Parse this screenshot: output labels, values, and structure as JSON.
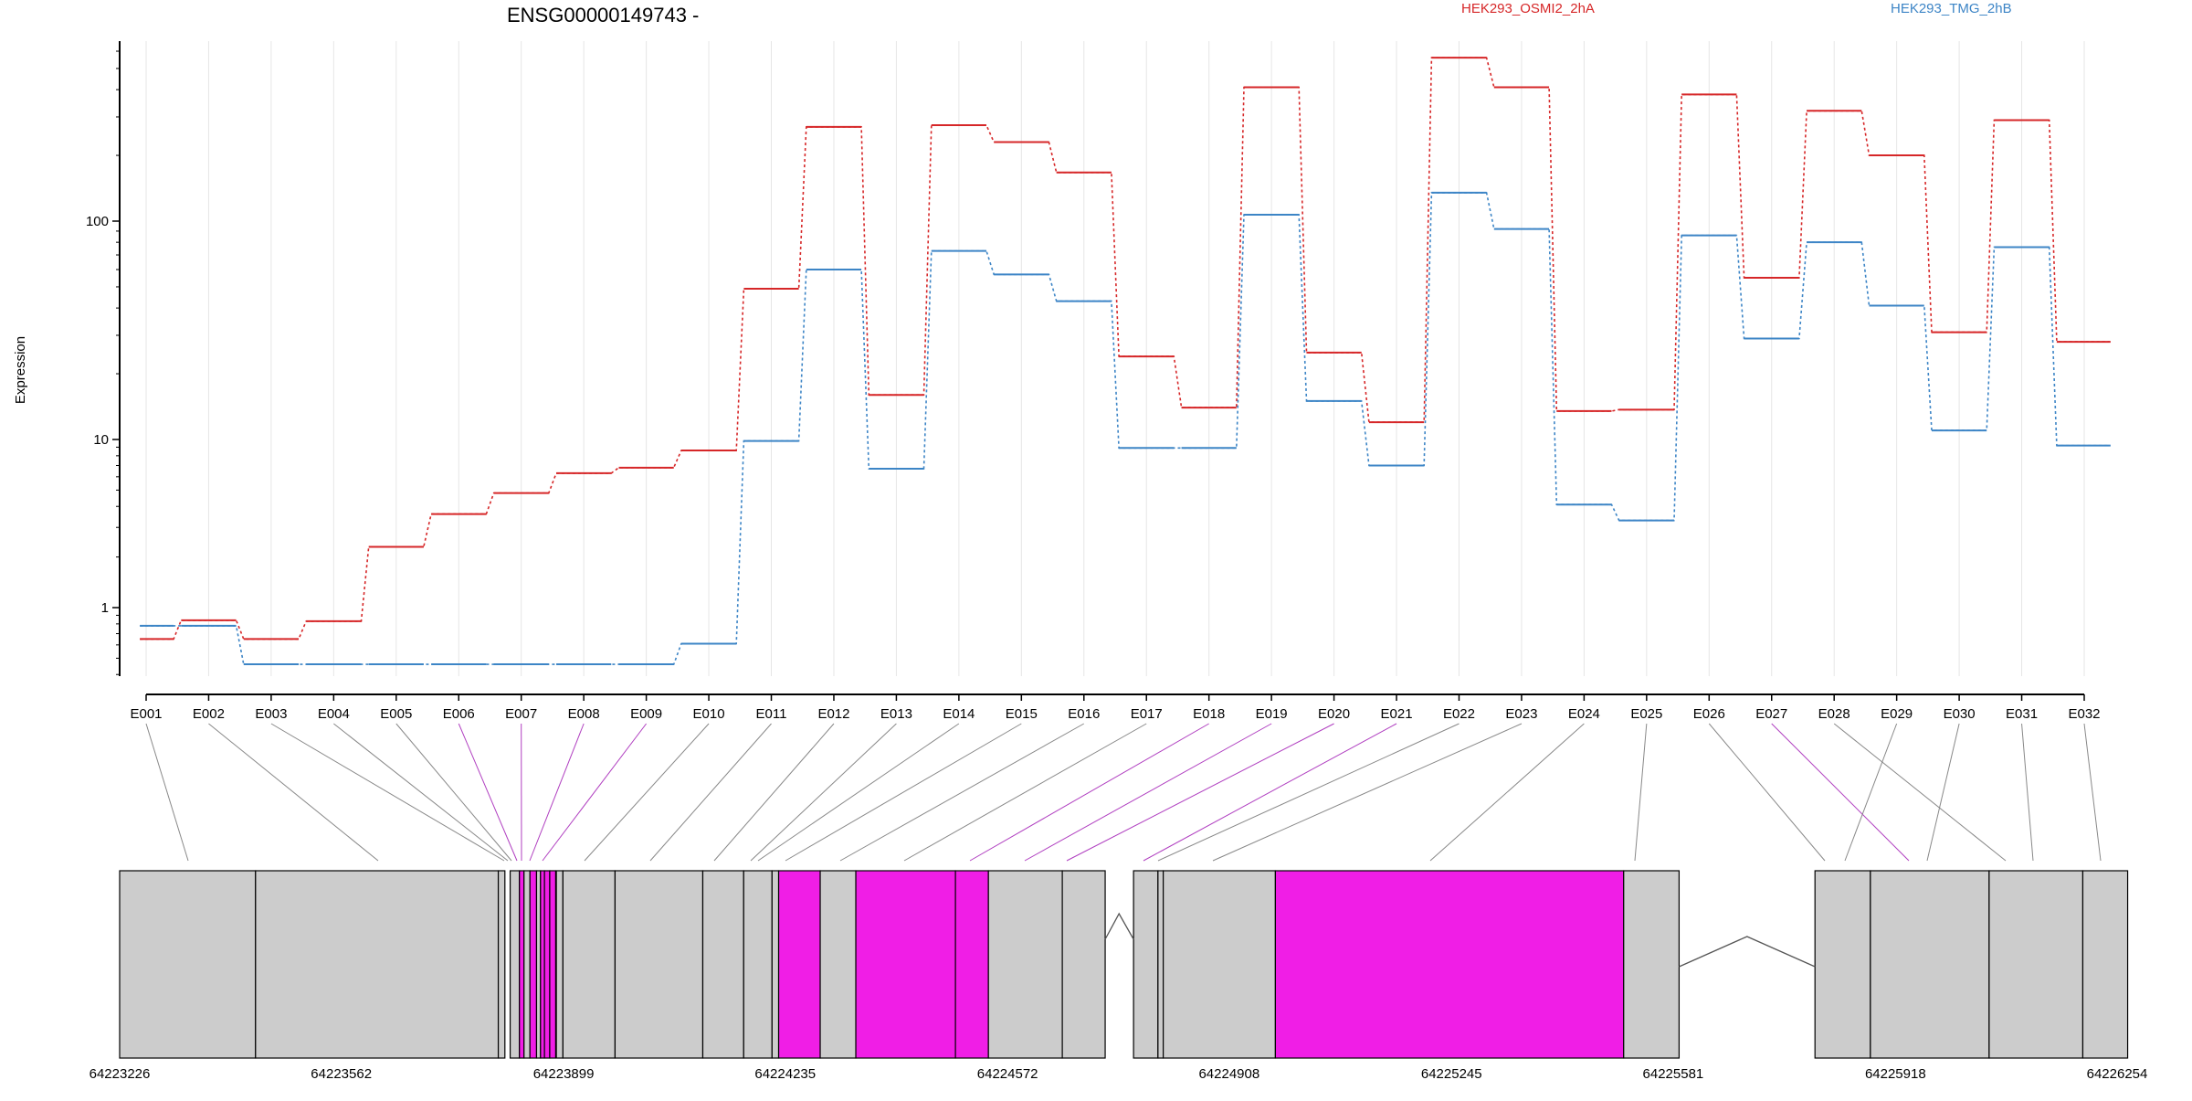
{
  "chart_data": {
    "type": "line",
    "title": "ENSG00000149743 -",
    "ylabel": "Expression",
    "yscale": "log",
    "y_ticks": [
      1,
      10,
      100
    ],
    "y_tick_labels": [
      "1",
      "10",
      "100"
    ],
    "categories": [
      "E001",
      "E002",
      "E003",
      "E004",
      "E005",
      "E006",
      "E007",
      "E008",
      "E009",
      "E010",
      "E011",
      "E012",
      "E013",
      "E014",
      "E015",
      "E016",
      "E017",
      "E018",
      "E019",
      "E020",
      "E021",
      "E022",
      "E023",
      "E024",
      "E025",
      "E026",
      "E027",
      "E028",
      "E029",
      "E030",
      "E031",
      "E032"
    ],
    "series": [
      {
        "name": "HEK293_OSMI2_2hA",
        "color": "#d62728",
        "values": [
          0.65,
          0.84,
          0.65,
          0.83,
          2.3,
          3.6,
          4.8,
          6.3,
          6.8,
          8.6,
          49,
          270,
          16,
          275,
          230,
          167,
          24,
          14,
          410,
          25,
          12,
          560,
          410,
          13.5,
          13.7,
          380,
          55,
          320,
          200,
          31,
          290,
          28
        ]
      },
      {
        "name": "HEK293_TMG_2hB",
        "color": "#3d85c6",
        "values": [
          0.78,
          0.78,
          0.46,
          0.46,
          0.46,
          0.46,
          0.46,
          0.46,
          0.46,
          0.61,
          9.8,
          60,
          6.7,
          73,
          57,
          43,
          8.9,
          8.9,
          107,
          15,
          7,
          135,
          92,
          4.1,
          3.3,
          86,
          29,
          80,
          41,
          11,
          76,
          9.2
        ]
      }
    ],
    "magenta_exons": [
      "E006",
      "E007",
      "E008",
      "E009",
      "E018",
      "E019",
      "E020",
      "E021",
      "E027"
    ],
    "gene_axis": {
      "start": 64223226,
      "end": 64226254,
      "tick_labels": [
        "64223226",
        "64223562",
        "64223899",
        "64224235",
        "64224572",
        "64224908",
        "64225245",
        "64225581",
        "64225918",
        "64226254"
      ]
    },
    "grid": true,
    "legend": "top"
  },
  "colors": {
    "exon_default": "#cccccc",
    "exon_highlight": "#f01ee6",
    "connector_default": "#888888",
    "connector_highlight": "#b03fc0"
  }
}
